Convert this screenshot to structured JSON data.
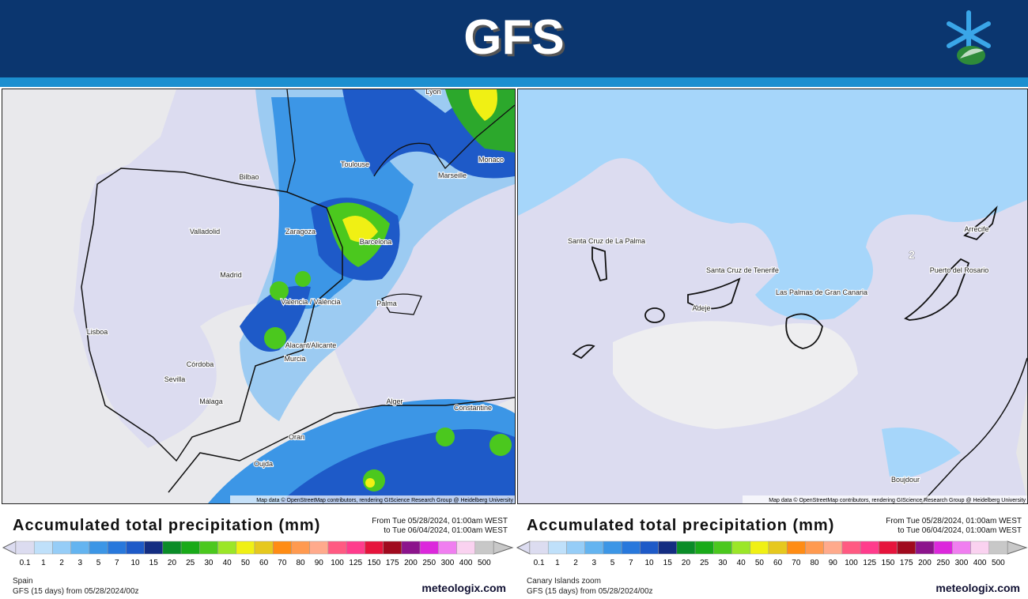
{
  "header": {
    "title": "GFS"
  },
  "scale": {
    "labels": [
      0.1,
      1,
      2,
      3,
      5,
      7,
      10,
      15,
      20,
      25,
      30,
      40,
      50,
      60,
      70,
      80,
      90,
      100,
      125,
      150,
      175,
      200,
      250,
      300,
      400,
      500
    ],
    "colors": [
      "#dcdcf0",
      "#bfe0fa",
      "#96cdf7",
      "#64b4f0",
      "#3c96e6",
      "#2878dc",
      "#1e5ac8",
      "#142d82",
      "#0a8c28",
      "#19aa19",
      "#4bc81e",
      "#9be628",
      "#f0f014",
      "#e6c81e",
      "#ff8c14",
      "#ff9a50",
      "#ffaa8c",
      "#ff5a82",
      "#ff3c8c",
      "#e6143c",
      "#a00a1e",
      "#8c148c",
      "#dc28dc",
      "#f07ef0",
      "#fad2f0",
      "#c8c8c8"
    ]
  },
  "panels": [
    {
      "map": {
        "labels": [
          "Lyon",
          "Bilbao",
          "Toulouse",
          "Marseille",
          "Monaco",
          "Valladolid",
          "Zaragoza",
          "Barcelona",
          "Madrid",
          "Valencia / València",
          "Palma",
          "Lisboa",
          "Alacant/Alicante",
          "Murcia",
          "Córdoba",
          "Sevilla",
          "Málaga",
          "Alger",
          "Constantine",
          "Oran",
          "Oujda"
        ],
        "attribution": "Map data © OpenStreetMap contributors, rendering GIScience Research Group @ Heidelberg University"
      },
      "legend": {
        "title": "Accumulated total precipitation (mm)",
        "from": "From Tue 05/28/2024, 01:00am WEST",
        "to": "to Tue 06/04/2024, 01:00am WEST",
        "region": "Spain",
        "model": "GFS (15 days) from 05/28/2024/00z",
        "brand": "meteologix.com"
      }
    },
    {
      "map": {
        "labels": [
          "Santa Cruz de La Palma",
          "Santa Cruz de Tenerife",
          "Adeje",
          "Las Palmas de Gran Canaria",
          "Puerto del Rosario",
          "Arrecife",
          "Boujdour",
          "2"
        ],
        "attribution": "Map data © OpenStreetMap contributors, rendering GIScience Research Group @ Heidelberg University"
      },
      "legend": {
        "title": "Accumulated total precipitation (mm)",
        "from": "From Tue 05/28/2024, 01:00am WEST",
        "to": "to Tue 06/04/2024, 01:00am WEST",
        "region": "Canary Islands zoom",
        "model": "GFS (15 days) from 05/28/2024/00z",
        "brand": "meteologix.com"
      }
    }
  ]
}
